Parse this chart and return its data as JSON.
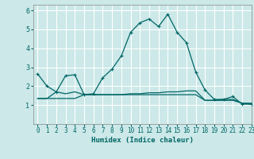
{
  "xlabel": "Humidex (Indice chaleur)",
  "xlim": [
    -0.5,
    23
  ],
  "ylim": [
    0,
    6.3
  ],
  "yticks": [
    1,
    2,
    3,
    4,
    5,
    6
  ],
  "xticks": [
    0,
    1,
    2,
    3,
    4,
    5,
    6,
    7,
    8,
    9,
    10,
    11,
    12,
    13,
    14,
    15,
    16,
    17,
    18,
    19,
    20,
    21,
    22,
    23
  ],
  "bg_color": "#cce8e8",
  "grid_color": "#ffffff",
  "line_color": "#006666",
  "series": [
    [
      2.65,
      2.0,
      1.7,
      2.55,
      2.6,
      1.55,
      1.6,
      2.45,
      2.9,
      3.6,
      4.85,
      5.35,
      5.55,
      5.15,
      5.8,
      4.85,
      4.3,
      2.75,
      1.8,
      1.3,
      1.3,
      1.45,
      1.05,
      1.05
    ],
    [
      1.35,
      1.35,
      1.7,
      1.6,
      1.7,
      1.55,
      1.55,
      1.55,
      1.55,
      1.55,
      1.6,
      1.6,
      1.65,
      1.65,
      1.7,
      1.7,
      1.75,
      1.75,
      1.25,
      1.25,
      1.3,
      1.3,
      1.1,
      1.1
    ],
    [
      1.35,
      1.35,
      1.35,
      1.35,
      1.35,
      1.55,
      1.55,
      1.55,
      1.55,
      1.55,
      1.55,
      1.55,
      1.55,
      1.55,
      1.55,
      1.55,
      1.55,
      1.55,
      1.25,
      1.25,
      1.25,
      1.25,
      1.1,
      1.05
    ]
  ],
  "xticklabels": [
    "0",
    "1",
    "2",
    "3",
    "4",
    "5",
    "6",
    "7",
    "8",
    "9",
    "10",
    "11",
    "12",
    "13",
    "14",
    "15",
    "16",
    "17",
    "18",
    "19",
    "20",
    "21",
    "22",
    "23"
  ],
  "yticklabels": [
    "1",
    "2",
    "3",
    "4",
    "5",
    "6"
  ]
}
